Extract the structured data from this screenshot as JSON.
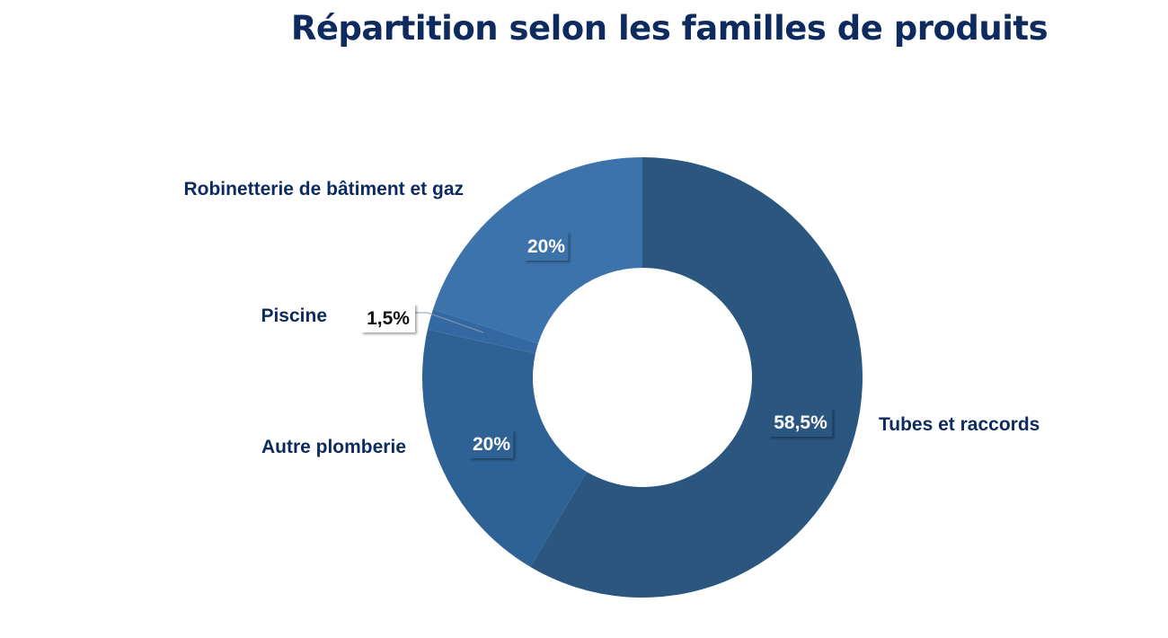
{
  "chart_data": {
    "type": "pie",
    "donut": true,
    "title": "Répartition selon les familles de produits",
    "legend": "none",
    "slices": [
      {
        "name": "Tubes et raccords",
        "value": 58.5,
        "label": "58,5%",
        "color": "#2a5680"
      },
      {
        "name": "Autre plomberie",
        "value": 20,
        "label": "20%",
        "color": "#2f6294"
      },
      {
        "name": "Piscine",
        "value": 1.5,
        "label": "1,5%",
        "color": "#3368a0"
      },
      {
        "name": "Robinetterie de bâtiment et gaz",
        "value": 20,
        "label": "20%",
        "color": "#3d73ab"
      }
    ]
  }
}
